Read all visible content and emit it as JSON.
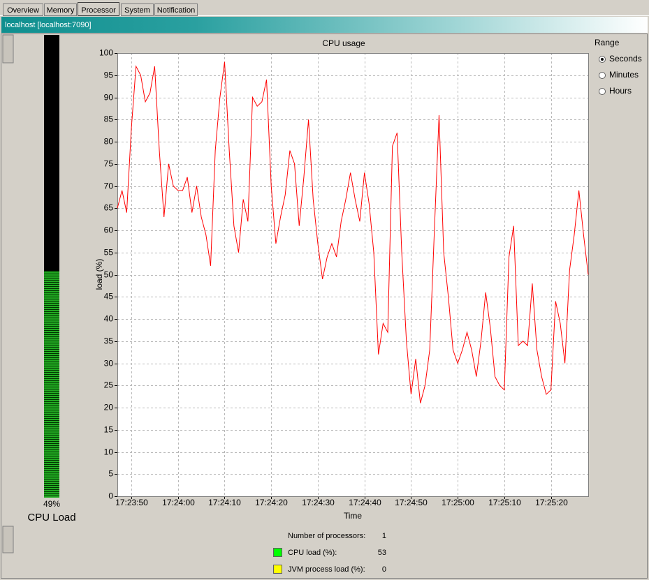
{
  "tabs": [
    {
      "label": "Overview",
      "selected": false
    },
    {
      "label": "Memory",
      "selected": false
    },
    {
      "label": "Processor",
      "selected": true
    },
    {
      "label": "System",
      "selected": false
    },
    {
      "label": "Notification",
      "selected": false
    }
  ],
  "connection_title": "localhost [localhost:7090]",
  "gauge": {
    "value": 49,
    "value_label": "49%",
    "title": "CPU Load",
    "color": "#22aa22"
  },
  "chart_data": {
    "type": "line",
    "title": "CPU usage",
    "x_label": "Time",
    "y_label": "load (%)",
    "x": [
      "17:23:47",
      "17:23:48",
      "17:23:49",
      "17:23:50",
      "17:23:51",
      "17:23:52",
      "17:23:53",
      "17:23:54",
      "17:23:55",
      "17:23:56",
      "17:23:57",
      "17:23:58",
      "17:23:59",
      "17:24:00",
      "17:24:01",
      "17:24:02",
      "17:24:03",
      "17:24:04",
      "17:24:05",
      "17:24:06",
      "17:24:07",
      "17:24:08",
      "17:24:09",
      "17:24:10",
      "17:24:11",
      "17:24:12",
      "17:24:13",
      "17:24:14",
      "17:24:15",
      "17:24:16",
      "17:24:17",
      "17:24:18",
      "17:24:19",
      "17:24:20",
      "17:24:21",
      "17:24:22",
      "17:24:23",
      "17:24:24",
      "17:24:25",
      "17:24:26",
      "17:24:27",
      "17:24:28",
      "17:24:29",
      "17:24:30",
      "17:24:31",
      "17:24:32",
      "17:24:33",
      "17:24:34",
      "17:24:35",
      "17:24:36",
      "17:24:37",
      "17:24:38",
      "17:24:39",
      "17:24:40",
      "17:24:41",
      "17:24:42",
      "17:24:43",
      "17:24:44",
      "17:24:45",
      "17:24:46",
      "17:24:47",
      "17:24:48",
      "17:24:49",
      "17:24:50",
      "17:24:51",
      "17:24:52",
      "17:24:53",
      "17:24:54",
      "17:24:55",
      "17:24:56",
      "17:24:57",
      "17:24:58",
      "17:24:59",
      "17:25:00",
      "17:25:01",
      "17:25:02",
      "17:25:03",
      "17:25:04",
      "17:25:05",
      "17:25:06",
      "17:25:07",
      "17:25:08",
      "17:25:09",
      "17:25:10",
      "17:25:11",
      "17:25:12",
      "17:25:13",
      "17:25:14",
      "17:25:15",
      "17:25:16",
      "17:25:17",
      "17:25:18",
      "17:25:19",
      "17:25:20",
      "17:25:21",
      "17:25:22",
      "17:25:23",
      "17:25:24",
      "17:25:25",
      "17:25:26",
      "17:25:27",
      "17:25:28"
    ],
    "series": [
      {
        "color": "#ff0000",
        "values": [
          65,
          69,
          64,
          83,
          97,
          95,
          89,
          91,
          97,
          78,
          63,
          75,
          70,
          69,
          69,
          72,
          64,
          70,
          63,
          59,
          52,
          78,
          90,
          98,
          78,
          61,
          55,
          67,
          62,
          90,
          88,
          89,
          94,
          70,
          57,
          63,
          68,
          78,
          75,
          61,
          72,
          85,
          67,
          57,
          49,
          54,
          57,
          54,
          62,
          67,
          73,
          67,
          62,
          73,
          66,
          55,
          32,
          39,
          37,
          79,
          82,
          55,
          35,
          23,
          31,
          21,
          25,
          33,
          60,
          86,
          55,
          45,
          33,
          30,
          33,
          37,
          33,
          27,
          35,
          46,
          38,
          27,
          25,
          24,
          54,
          61,
          34,
          35,
          34,
          48,
          33,
          27,
          23,
          24,
          44,
          39,
          30,
          51,
          59,
          69,
          59,
          50
        ]
      }
    ],
    "xlim": [
      "17:23:47",
      "17:25:28"
    ],
    "xticks": [
      "17:23:50",
      "17:24:00",
      "17:24:10",
      "17:24:20",
      "17:24:30",
      "17:24:40",
      "17:24:50",
      "17:25:00",
      "17:25:10",
      "17:25:20"
    ],
    "ylim": [
      0,
      100
    ],
    "yticks": [
      0,
      5,
      10,
      15,
      20,
      25,
      30,
      35,
      40,
      45,
      50,
      55,
      60,
      65,
      70,
      75,
      80,
      85,
      90,
      95,
      100
    ],
    "grid": true
  },
  "range": {
    "title": "Range",
    "options": [
      "Seconds",
      "Minutes",
      "Hours"
    ],
    "selected": 0
  },
  "info": [
    {
      "label": "Number of processors:",
      "value": 1
    },
    {
      "label": "CPU load (%):",
      "value": 53,
      "color": "#00ff00"
    },
    {
      "label": "JVM process load (%):",
      "value": 0,
      "color": "#ffff00"
    }
  ]
}
